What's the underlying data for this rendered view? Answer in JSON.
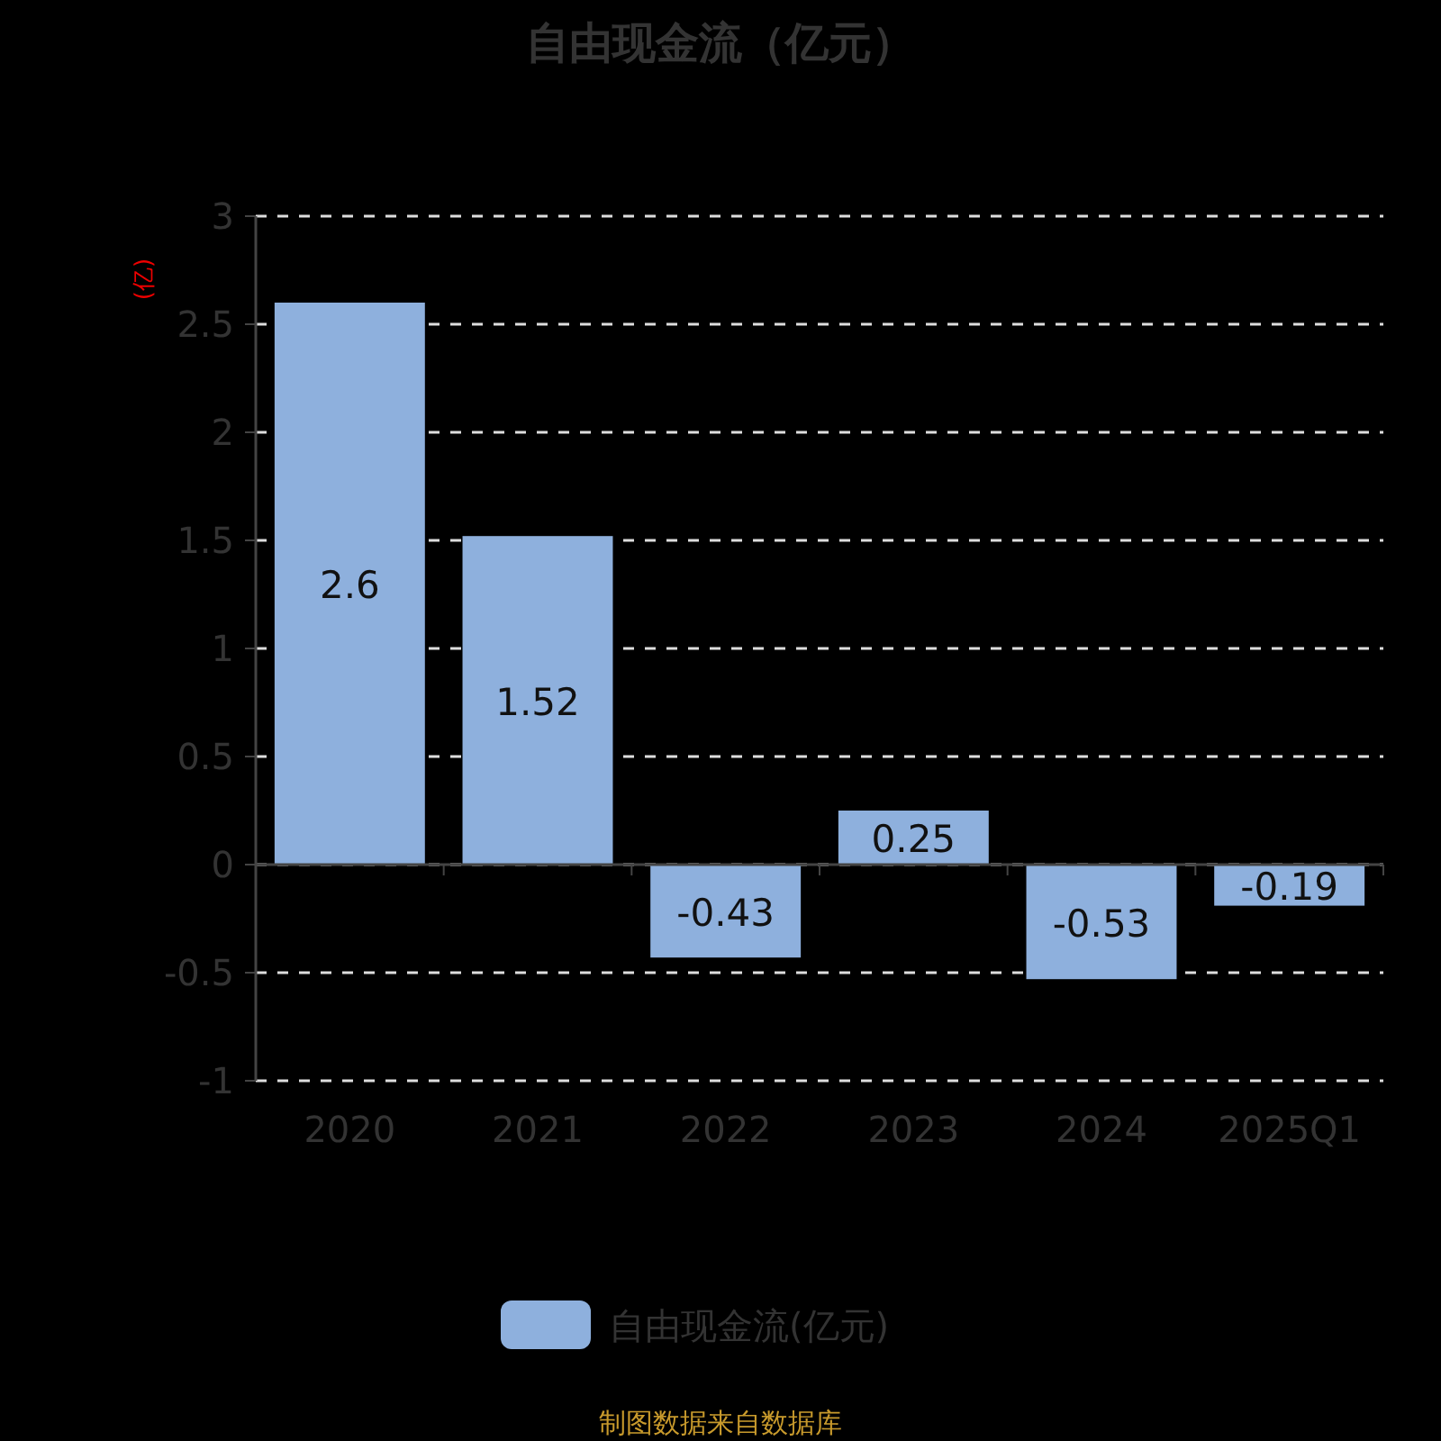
{
  "chart_data": {
    "type": "bar",
    "title": "自由现金流（亿元）",
    "ylabel": "(亿)",
    "categories": [
      "2020",
      "2021",
      "2022",
      "2023",
      "2024",
      "2025Q1"
    ],
    "series": [
      {
        "name": "自由现金流(亿元)",
        "color": "#8eb0dd",
        "values": [
          2.6,
          1.52,
          -0.43,
          0.25,
          -0.53,
          -0.19
        ]
      }
    ],
    "ylim": [
      -1,
      3
    ],
    "yticks": [
      -1,
      -0.5,
      0,
      0.5,
      1,
      1.5,
      2,
      2.5,
      3
    ],
    "grid": "y",
    "legend": "bottom",
    "data_labels": true,
    "annotations": [
      "制图数据来自数据库"
    ]
  }
}
